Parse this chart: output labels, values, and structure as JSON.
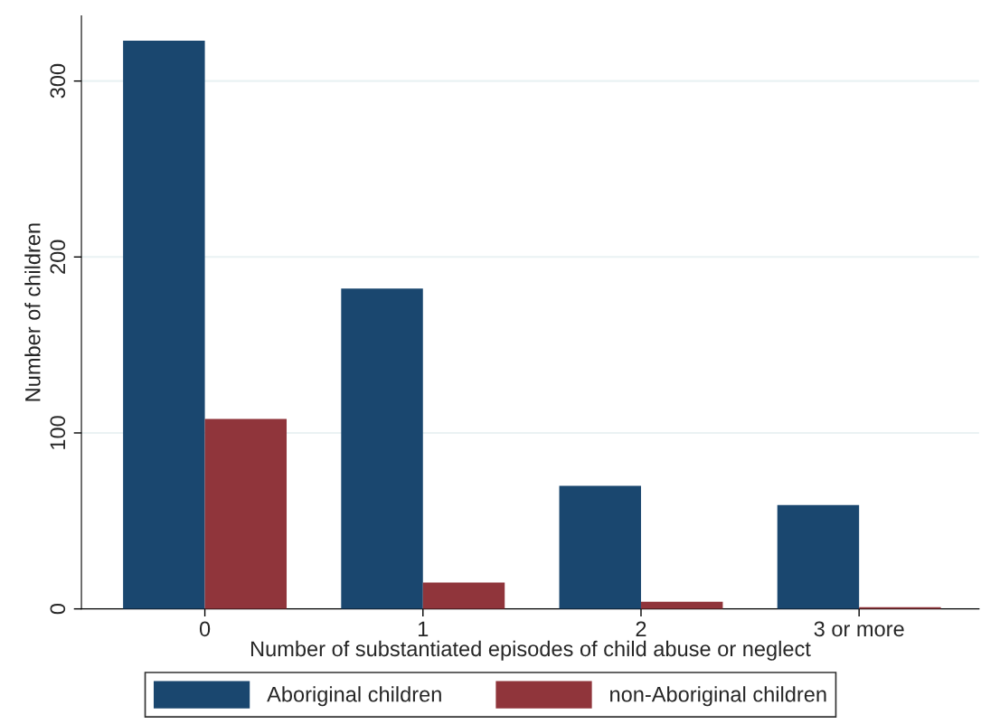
{
  "chart_data": {
    "type": "bar",
    "xlabel": "Number of substantiated episodes of child abuse or neglect",
    "ylabel": "Number of children",
    "categories": [
      "0",
      "1",
      "2",
      "3 or more"
    ],
    "series": [
      {
        "name": "Aboriginal children",
        "color": "#1a476f",
        "values": [
          323,
          182,
          70,
          59
        ]
      },
      {
        "name": "non-Aboriginal children",
        "color": "#90353b",
        "values": [
          108,
          15,
          4,
          1
        ]
      }
    ],
    "ylim": [
      0,
      337
    ],
    "yticks": [
      0,
      100,
      200,
      300
    ],
    "grid": "y",
    "legend": "bottom"
  }
}
